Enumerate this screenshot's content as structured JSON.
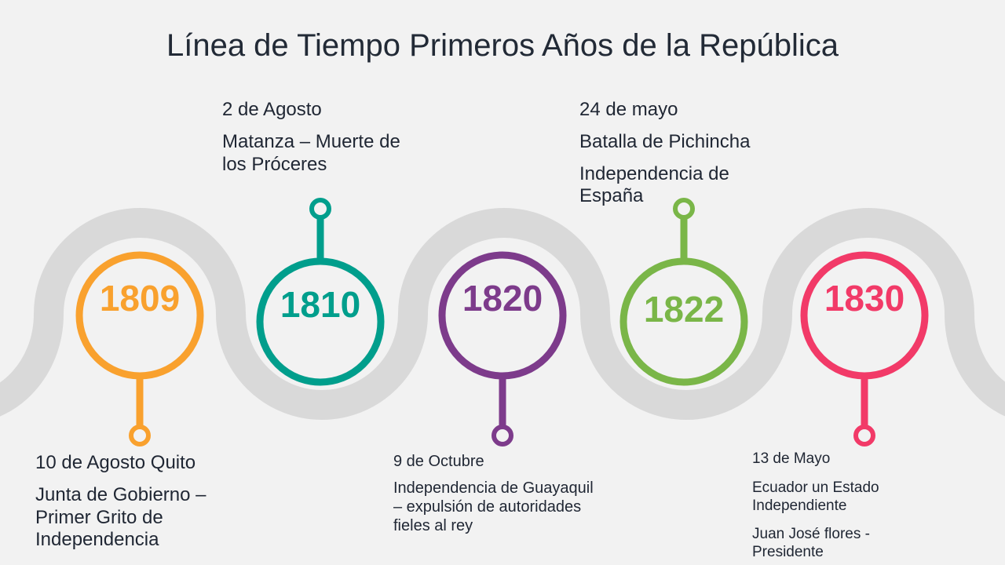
{
  "title": "Línea de Tiempo Primeros Años de la República",
  "events": [
    {
      "year": "1809",
      "color": "#f9a12e",
      "date": "10 de Agosto  Quito",
      "lines": [
        "Junta de Gobierno – Primer Grito de Independencia"
      ]
    },
    {
      "year": "1810",
      "color": "#009e8c",
      "date": "2 de Agosto",
      "lines": [
        "Matanza – Muerte de los Próceres"
      ]
    },
    {
      "year": "1820",
      "color": "#7d3b8b",
      "date": "9 de Octubre",
      "lines": [
        "Independencia de Guayaquil – expulsión de autoridades fieles al rey"
      ]
    },
    {
      "year": "1822",
      "color": "#7ab648",
      "date": "24 de mayo",
      "lines": [
        "Batalla de Pichincha",
        "Independencia de España"
      ]
    },
    {
      "year": "1830",
      "color": "#f23a68",
      "date": "13 de Mayo",
      "lines": [
        "Ecuador un Estado Independiente",
        "Juan José flores - Presidente"
      ]
    }
  ]
}
